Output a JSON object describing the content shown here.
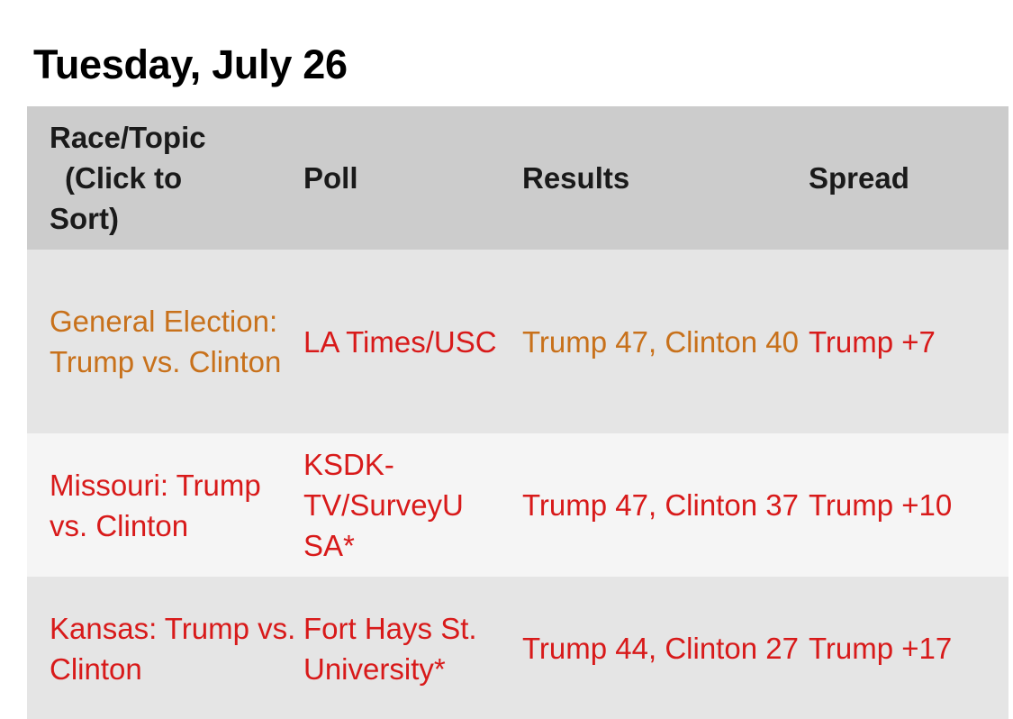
{
  "heading": "Tuesday, July 26",
  "colors": {
    "header_bg": "#cccccc",
    "row_odd_bg": "#e5e5e5",
    "row_even_bg": "#f5f5f5",
    "orange_text": "#c8711b",
    "red_text": "#d81a1a"
  },
  "table": {
    "headers": {
      "race_line1": "Race/Topic",
      "race_line2": "(Click to",
      "race_line3": "Sort)",
      "poll": "Poll",
      "results": "Results",
      "spread": "Spread"
    },
    "rows": [
      {
        "race": "General Election: Trump vs. Clinton",
        "poll": "LA Times/USC",
        "results": "Trump 47, Clinton 40",
        "spread": "Trump +7"
      },
      {
        "race": "Missouri: Trump vs. Clinton",
        "poll": "KSDK-TV/SurveyUSA*",
        "results": "Trump 47, Clinton 37",
        "spread": "Trump +10"
      },
      {
        "race": "Kansas: Trump vs. Clinton",
        "poll": "Fort Hays St. University*",
        "results": "Trump 44, Clinton 27",
        "spread": "Trump +17"
      }
    ]
  }
}
